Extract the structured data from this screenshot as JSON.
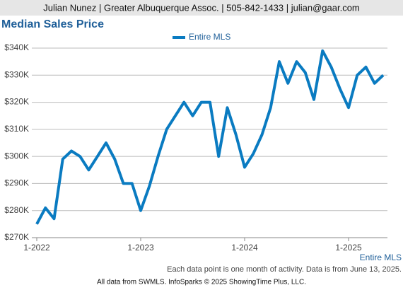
{
  "header": "Julian Nunez | Greater Albuquerque Assoc. | 505-842-1433 | julian@gaar.com",
  "chart_data": {
    "type": "line",
    "title": "Median Sales Price",
    "categories": [
      "1-2022",
      null,
      null,
      null,
      null,
      null,
      null,
      null,
      null,
      null,
      null,
      null,
      "1-2023",
      null,
      null,
      null,
      null,
      null,
      null,
      null,
      null,
      null,
      null,
      null,
      "1-2024",
      null,
      null,
      null,
      null,
      null,
      null,
      null,
      null,
      null,
      null,
      null,
      "1-2025",
      null,
      null,
      null,
      null
    ],
    "series": [
      {
        "name": "Entire MLS",
        "color": "#0a7bc1",
        "values": [
          275000,
          281000,
          277000,
          299000,
          302000,
          300000,
          295000,
          300000,
          305000,
          299000,
          290000,
          290000,
          280000,
          289000,
          300000,
          310000,
          315000,
          320000,
          315000,
          320000,
          320000,
          300000,
          318000,
          308000,
          296000,
          301000,
          308000,
          318000,
          335000,
          327000,
          335000,
          331000,
          321000,
          339000,
          333000,
          325000,
          318000,
          330000,
          333000,
          327000,
          330000
        ]
      }
    ],
    "ylim": [
      270000,
      340000
    ],
    "yticks": [
      {
        "value": 270000,
        "label": "$270K"
      },
      {
        "value": 280000,
        "label": "$280K"
      },
      {
        "value": 290000,
        "label": "$290K"
      },
      {
        "value": 300000,
        "label": "$300K"
      },
      {
        "value": 310000,
        "label": "$310K"
      },
      {
        "value": 320000,
        "label": "$320K"
      },
      {
        "value": 330000,
        "label": "$330K"
      },
      {
        "value": 340000,
        "label": "$340K"
      }
    ],
    "grid": true,
    "x_label": "Entire MLS",
    "note": "Each data point is one month of activity. Data is from June 13, 2025.",
    "source": "All data from SWMLS. InfoSparks © 2025 ShowingTime Plus, LLC."
  }
}
